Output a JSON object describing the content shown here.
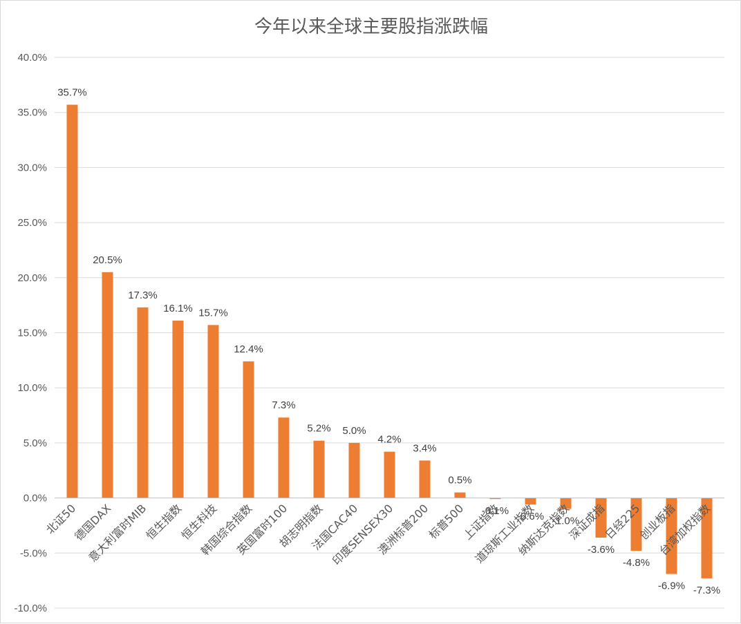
{
  "chart_data": {
    "type": "bar",
    "title": "今年以来全球主要股指涨跌幅",
    "xlabel": "",
    "ylabel": "",
    "ylim": [
      -10,
      40
    ],
    "yticks": [
      "-10.0%",
      "-5.0%",
      "0.0%",
      "5.0%",
      "10.0%",
      "15.0%",
      "20.0%",
      "25.0%",
      "30.0%",
      "35.0%",
      "40.0%"
    ],
    "grid": true,
    "color": "#ED7D31",
    "categories": [
      "北证50",
      "德国DAX",
      "意大利富时MIB",
      "恒生指数",
      "恒生科技",
      "韩国综合指数",
      "英国富时100",
      "胡志明指数",
      "法国CAC40",
      "印度SENSEX30",
      "澳洲标普200",
      "标普500",
      "上证指数",
      "道琼斯工业指数",
      "纳斯达克指数",
      "深证成指",
      "日经225",
      "创业板指",
      "台湾加权指数"
    ],
    "values": [
      35.7,
      20.5,
      17.3,
      16.1,
      15.7,
      12.4,
      7.3,
      5.2,
      5.0,
      4.2,
      3.4,
      0.5,
      -0.1,
      -0.6,
      -1.0,
      -3.6,
      -4.8,
      -6.9,
      -7.3
    ],
    "data_labels": [
      "35.7%",
      "20.5%",
      "17.3%",
      "16.1%",
      "15.7%",
      "12.4%",
      "7.3%",
      "5.2%",
      "5.0%",
      "4.2%",
      "3.4%",
      "0.5%",
      "-0.1%",
      "-0.6%",
      "-1.0%",
      "-3.6%",
      "-4.8%",
      "-6.9%",
      "-7.3%"
    ]
  }
}
